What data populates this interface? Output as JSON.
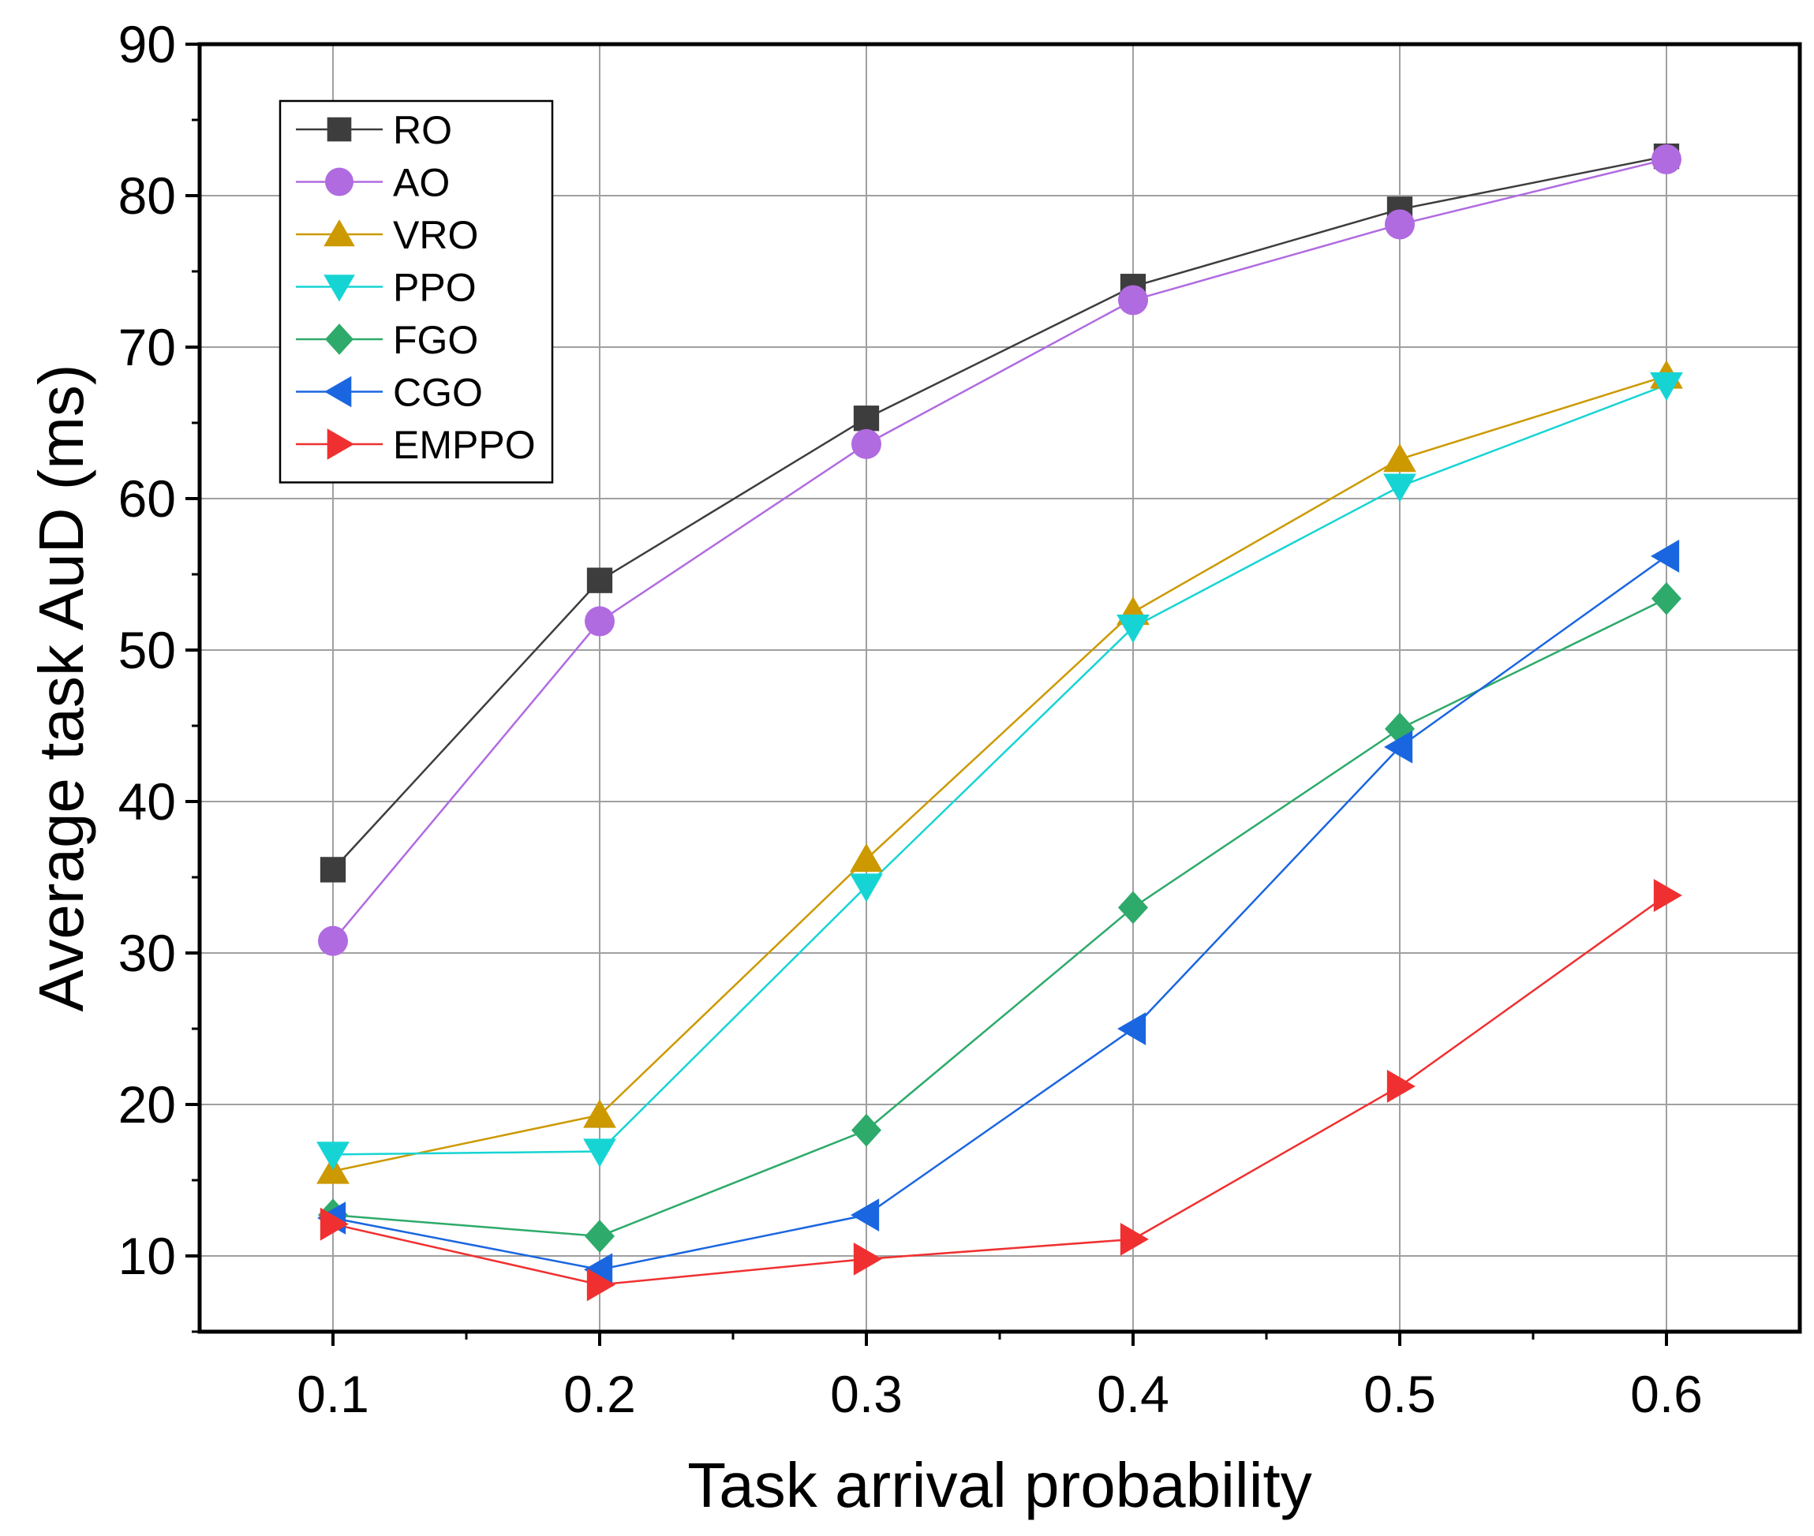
{
  "chart_data": {
    "type": "line",
    "title": "",
    "xlabel": "Task arrival probability",
    "ylabel": "Average task AuD (ms)",
    "x": [
      0.1,
      0.2,
      0.3,
      0.4,
      0.5,
      0.6
    ],
    "x_tick_labels": [
      "0.1",
      "0.2",
      "0.3",
      "0.4",
      "0.5",
      "0.6"
    ],
    "xlim": [
      0.05,
      0.65
    ],
    "ylim": [
      5,
      90
    ],
    "y_ticks": [
      10,
      20,
      30,
      40,
      50,
      60,
      70,
      80,
      90
    ],
    "y_tick_labels": [
      "10",
      "20",
      "30",
      "40",
      "50",
      "60",
      "70",
      "80",
      "90"
    ],
    "grid": true,
    "legend_position": "top-left",
    "series": [
      {
        "name": "RO",
        "marker": "square",
        "color": "#3d3d3d",
        "line_color": "#3d3d3d",
        "values": [
          35.5,
          54.6,
          65.3,
          74.0,
          79.1,
          82.6
        ]
      },
      {
        "name": "AO",
        "marker": "circle",
        "color": "#b06be0",
        "line_color": "#b06be0",
        "values": [
          30.8,
          51.9,
          63.6,
          73.1,
          78.1,
          82.4
        ]
      },
      {
        "name": "VRO",
        "marker": "triangle-up",
        "color": "#cc9900",
        "line_color": "#cc9900",
        "values": [
          15.6,
          19.3,
          36.2,
          52.5,
          62.6,
          68.1
        ]
      },
      {
        "name": "PPO",
        "marker": "triangle-down",
        "color": "#17d4d4",
        "line_color": "#17d4d4",
        "values": [
          16.7,
          16.9,
          34.4,
          51.5,
          60.8,
          67.5
        ]
      },
      {
        "name": "FGO",
        "marker": "diamond",
        "color": "#2eaa6a",
        "line_color": "#2eaa6a",
        "values": [
          12.7,
          11.3,
          18.3,
          33.0,
          44.8,
          53.4
        ]
      },
      {
        "name": "CGO",
        "marker": "triangle-left",
        "color": "#1a66e0",
        "line_color": "#1a66e0",
        "values": [
          12.5,
          9.1,
          12.7,
          25.0,
          43.6,
          56.2
        ]
      },
      {
        "name": "EMPPO",
        "marker": "triangle-right",
        "color": "#f03030",
        "line_color": "#f03030",
        "values": [
          12.1,
          8.1,
          9.8,
          11.1,
          21.2,
          33.8
        ]
      }
    ]
  }
}
